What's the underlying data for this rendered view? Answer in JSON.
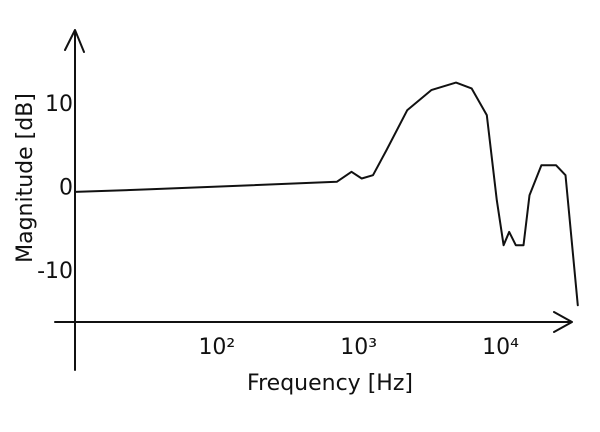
{
  "chart_data": {
    "type": "line",
    "x_label": "Frequency [Hz]",
    "y_label": "Magnitude [dB]",
    "x_scale": "log",
    "grid": false,
    "xlim": [
      10,
      40000
    ],
    "ylim": [
      -16,
      19
    ],
    "xticks": [
      {
        "value": 100,
        "label": "10²"
      },
      {
        "value": 1000,
        "label": "10³"
      },
      {
        "value": 10000,
        "label": "10⁴"
      }
    ],
    "yticks": [
      10,
      0,
      -10
    ],
    "series": [
      {
        "color": "#111111",
        "x": [
          10,
          34,
          176,
          700,
          890,
          1050,
          1260,
          1570,
          2200,
          3250,
          4850,
          6250,
          8000,
          9400,
          10500,
          11500,
          12800,
          14500,
          16000,
          19400,
          24600,
          28700,
          35000
        ],
        "values": [
          -0.4,
          -0.1,
          0.4,
          0.8,
          2,
          1.2,
          1.6,
          4.6,
          9.4,
          11.8,
          12.7,
          12,
          8.8,
          -1.4,
          -6.8,
          -5.2,
          -6.8,
          -6.8,
          -0.8,
          2.8,
          2.8,
          1.6,
          -14
        ]
      }
    ]
  }
}
